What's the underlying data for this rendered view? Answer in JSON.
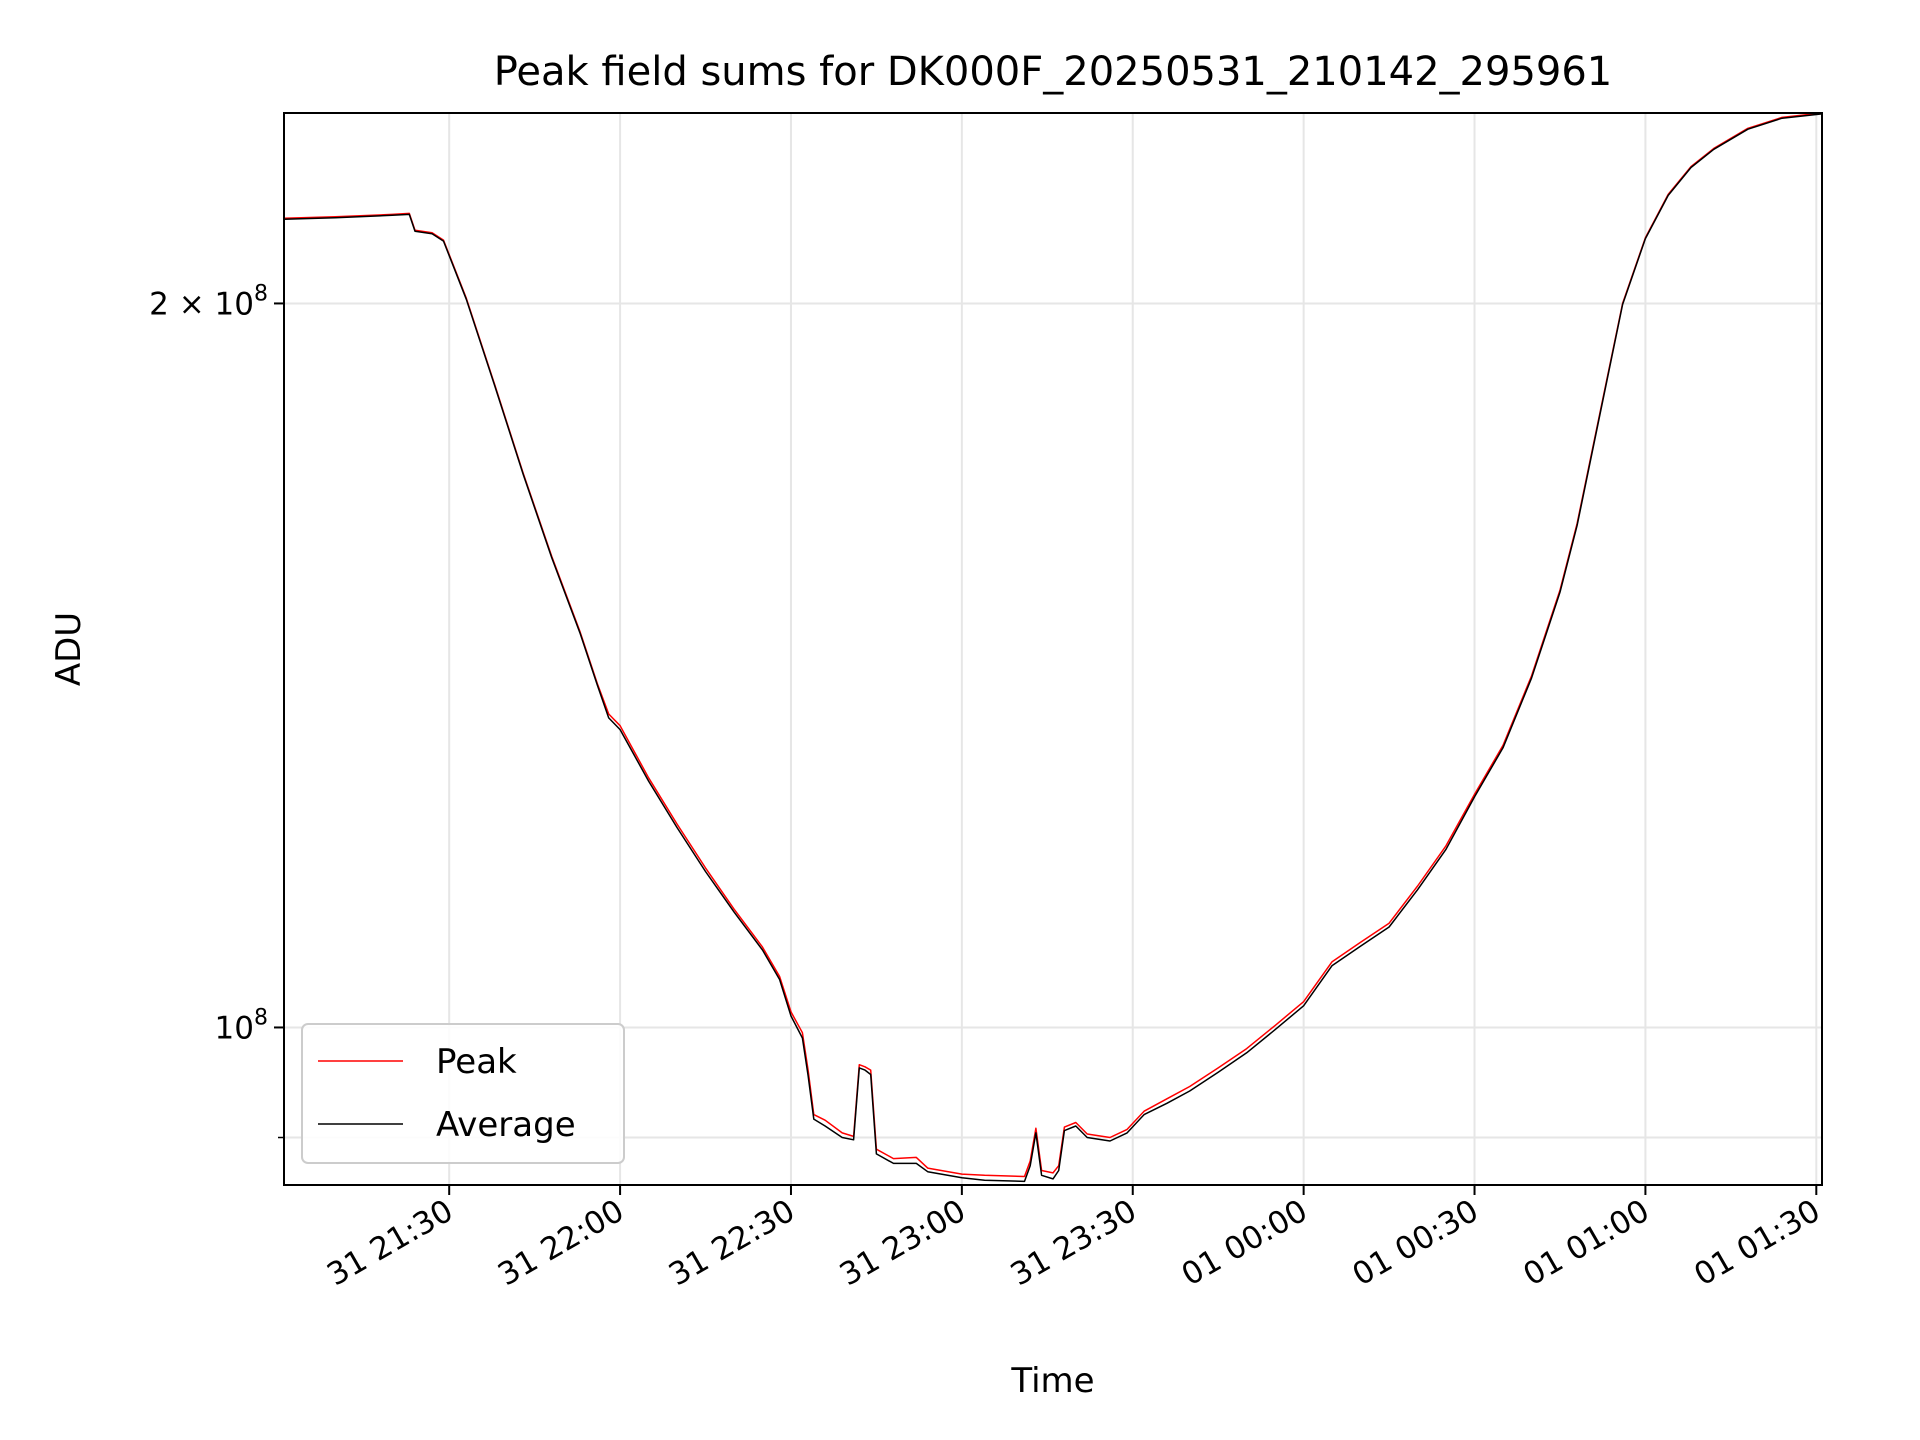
{
  "chart_data": {
    "type": "line",
    "title": "Peak field sums for DK000F_20250531_210142_295961",
    "xlabel": "Time",
    "ylabel": "ADU",
    "yscale": "log",
    "xlim": [
      "2025-05-31 21:01",
      "2025-06-01 01:31"
    ],
    "ylim": [
      86000000,
      240000000
    ],
    "grid": true,
    "legend_position": "lower-left",
    "x_ticks": [
      {
        "t": "2025-05-31 21:30",
        "label": "31 21:30"
      },
      {
        "t": "2025-05-31 22:00",
        "label": "31 22:00"
      },
      {
        "t": "2025-05-31 22:30",
        "label": "31 22:30"
      },
      {
        "t": "2025-05-31 23:00",
        "label": "31 23:00"
      },
      {
        "t": "2025-05-31 23:30",
        "label": "31 23:30"
      },
      {
        "t": "2025-06-01 00:00",
        "label": "01 00:00"
      },
      {
        "t": "2025-06-01 00:30",
        "label": "01 00:30"
      },
      {
        "t": "2025-06-01 01:00",
        "label": "01 01:00"
      },
      {
        "t": "2025-06-01 01:30",
        "label": "01 01:30"
      }
    ],
    "y_ticks": [
      {
        "v": 200000000,
        "base": "2 × 10",
        "exp": "8"
      },
      {
        "v": 100000000,
        "base": "10",
        "exp": "8"
      }
    ],
    "y_minor_ticks": [
      90000000
    ],
    "series": [
      {
        "name": "Peak",
        "color": "#ff0000",
        "points": [
          [
            "2025-05-31 21:01",
            217000000
          ],
          [
            "2025-05-31 21:10",
            217300000
          ],
          [
            "2025-05-31 21:20",
            217800000
          ],
          [
            "2025-05-31 21:23",
            218000000
          ],
          [
            "2025-05-31 21:24",
            214500000
          ],
          [
            "2025-05-31 21:27",
            214000000
          ],
          [
            "2025-05-31 21:29",
            212500000
          ],
          [
            "2025-05-31 21:33",
            201000000
          ],
          [
            "2025-05-31 21:38",
            185000000
          ],
          [
            "2025-05-31 21:43",
            170000000
          ],
          [
            "2025-05-31 21:48",
            157000000
          ],
          [
            "2025-05-31 21:53",
            146000000
          ],
          [
            "2025-05-31 21:56",
            139000000
          ],
          [
            "2025-05-31 21:58",
            135000000
          ],
          [
            "2025-05-31 22:00",
            133500000
          ],
          [
            "2025-05-31 22:05",
            127000000
          ],
          [
            "2025-05-31 22:10",
            121500000
          ],
          [
            "2025-05-31 22:15",
            116500000
          ],
          [
            "2025-05-31 22:20",
            112000000
          ],
          [
            "2025-05-31 22:25",
            108000000
          ],
          [
            "2025-05-31 22:28",
            105000000
          ],
          [
            "2025-05-31 22:30",
            101500000
          ],
          [
            "2025-05-31 22:32",
            99500000
          ],
          [
            "2025-05-31 22:33",
            96000000
          ],
          [
            "2025-05-31 22:34",
            92000000
          ],
          [
            "2025-05-31 22:36",
            91500000
          ],
          [
            "2025-05-31 22:39",
            90400000
          ],
          [
            "2025-05-31 22:41",
            90100000
          ],
          [
            "2025-05-31 22:42",
            96500000
          ],
          [
            "2025-05-31 22:43",
            96300000
          ],
          [
            "2025-05-31 22:44",
            96000000
          ],
          [
            "2025-05-31 22:45",
            89000000
          ],
          [
            "2025-05-31 22:48",
            88200000
          ],
          [
            "2025-05-31 22:52",
            88300000
          ],
          [
            "2025-05-31 22:54",
            87400000
          ],
          [
            "2025-05-31 23:00",
            86900000
          ],
          [
            "2025-05-31 23:04",
            86800000
          ],
          [
            "2025-05-31 23:11",
            86700000
          ],
          [
            "2025-05-31 23:12",
            88000000
          ],
          [
            "2025-05-31 23:13",
            90800000
          ],
          [
            "2025-05-31 23:14",
            87200000
          ],
          [
            "2025-05-31 23:16",
            87000000
          ],
          [
            "2025-05-31 23:17",
            87600000
          ],
          [
            "2025-05-31 23:18",
            90900000
          ],
          [
            "2025-05-31 23:20",
            91300000
          ],
          [
            "2025-05-31 23:22",
            90300000
          ],
          [
            "2025-05-31 23:26",
            90000000
          ],
          [
            "2025-05-31 23:29",
            90700000
          ],
          [
            "2025-05-31 23:32",
            92300000
          ],
          [
            "2025-05-31 23:36",
            93400000
          ],
          [
            "2025-05-31 23:40",
            94500000
          ],
          [
            "2025-05-31 23:45",
            96200000
          ],
          [
            "2025-05-31 23:50",
            98000000
          ],
          [
            "2025-05-31 23:55",
            100200000
          ],
          [
            "2025-06-01 00:00",
            102500000
          ],
          [
            "2025-06-01 00:05",
            106500000
          ],
          [
            "2025-06-01 00:10",
            108500000
          ],
          [
            "2025-06-01 00:15",
            110500000
          ],
          [
            "2025-06-01 00:20",
            114500000
          ],
          [
            "2025-06-01 00:25",
            119000000
          ],
          [
            "2025-06-01 00:30",
            125000000
          ],
          [
            "2025-06-01 00:35",
            131000000
          ],
          [
            "2025-06-01 00:40",
            140000000
          ],
          [
            "2025-06-01 00:45",
            152000000
          ],
          [
            "2025-06-01 00:48",
            162000000
          ],
          [
            "2025-06-01 00:52",
            180000000
          ],
          [
            "2025-06-01 00:56",
            200000000
          ],
          [
            "2025-06-01 01:00",
            213000000
          ],
          [
            "2025-06-01 01:04",
            222000000
          ],
          [
            "2025-06-01 01:08",
            228000000
          ],
          [
            "2025-06-01 01:12",
            232000000
          ],
          [
            "2025-06-01 01:18",
            236500000
          ],
          [
            "2025-06-01 01:24",
            239000000
          ],
          [
            "2025-06-01 01:31",
            240000000
          ]
        ]
      },
      {
        "name": "Average",
        "color": "#000000",
        "points": [
          [
            "2025-05-31 21:01",
            216800000
          ],
          [
            "2025-05-31 21:10",
            217100000
          ],
          [
            "2025-05-31 21:20",
            217600000
          ],
          [
            "2025-05-31 21:23",
            217800000
          ],
          [
            "2025-05-31 21:24",
            214300000
          ],
          [
            "2025-05-31 21:27",
            213800000
          ],
          [
            "2025-05-31 21:29",
            212300000
          ],
          [
            "2025-05-31 21:33",
            200800000
          ],
          [
            "2025-05-31 21:38",
            184800000
          ],
          [
            "2025-05-31 21:43",
            169800000
          ],
          [
            "2025-05-31 21:48",
            156800000
          ],
          [
            "2025-05-31 21:53",
            145800000
          ],
          [
            "2025-05-31 21:56",
            138800000
          ],
          [
            "2025-05-31 21:58",
            134500000
          ],
          [
            "2025-05-31 22:00",
            133000000
          ],
          [
            "2025-05-31 22:05",
            126600000
          ],
          [
            "2025-05-31 22:10",
            121100000
          ],
          [
            "2025-05-31 22:15",
            116100000
          ],
          [
            "2025-05-31 22:20",
            111700000
          ],
          [
            "2025-05-31 22:25",
            107700000
          ],
          [
            "2025-05-31 22:28",
            104700000
          ],
          [
            "2025-05-31 22:30",
            101100000
          ],
          [
            "2025-05-31 22:32",
            99000000
          ],
          [
            "2025-05-31 22:33",
            95500000
          ],
          [
            "2025-05-31 22:34",
            91600000
          ],
          [
            "2025-05-31 22:36",
            91000000
          ],
          [
            "2025-05-31 22:39",
            90000000
          ],
          [
            "2025-05-31 22:41",
            89800000
          ],
          [
            "2025-05-31 22:42",
            96200000
          ],
          [
            "2025-05-31 22:43",
            96000000
          ],
          [
            "2025-05-31 22:44",
            95600000
          ],
          [
            "2025-05-31 22:45",
            88600000
          ],
          [
            "2025-05-31 22:48",
            87800000
          ],
          [
            "2025-05-31 22:52",
            87800000
          ],
          [
            "2025-05-31 22:54",
            87100000
          ],
          [
            "2025-05-31 23:00",
            86600000
          ],
          [
            "2025-05-31 23:04",
            86400000
          ],
          [
            "2025-05-31 23:11",
            86300000
          ],
          [
            "2025-05-31 23:12",
            87600000
          ],
          [
            "2025-05-31 23:13",
            90400000
          ],
          [
            "2025-05-31 23:14",
            86800000
          ],
          [
            "2025-05-31 23:16",
            86500000
          ],
          [
            "2025-05-31 23:17",
            87200000
          ],
          [
            "2025-05-31 23:18",
            90600000
          ],
          [
            "2025-05-31 23:20",
            91000000
          ],
          [
            "2025-05-31 23:22",
            90000000
          ],
          [
            "2025-05-31 23:26",
            89700000
          ],
          [
            "2025-05-31 23:29",
            90400000
          ],
          [
            "2025-05-31 23:32",
            92000000
          ],
          [
            "2025-05-31 23:36",
            93000000
          ],
          [
            "2025-05-31 23:40",
            94100000
          ],
          [
            "2025-05-31 23:45",
            95800000
          ],
          [
            "2025-05-31 23:50",
            97600000
          ],
          [
            "2025-05-31 23:55",
            99800000
          ],
          [
            "2025-06-01 00:00",
            102100000
          ],
          [
            "2025-06-01 00:05",
            106100000
          ],
          [
            "2025-06-01 00:10",
            108100000
          ],
          [
            "2025-06-01 00:15",
            110100000
          ],
          [
            "2025-06-01 00:20",
            114100000
          ],
          [
            "2025-06-01 00:25",
            118600000
          ],
          [
            "2025-06-01 00:30",
            124700000
          ],
          [
            "2025-06-01 00:35",
            130700000
          ],
          [
            "2025-06-01 00:40",
            139700000
          ],
          [
            "2025-06-01 00:45",
            151700000
          ],
          [
            "2025-06-01 00:48",
            161700000
          ],
          [
            "2025-06-01 00:52",
            179700000
          ],
          [
            "2025-06-01 00:56",
            199800000
          ],
          [
            "2025-06-01 01:00",
            212800000
          ],
          [
            "2025-06-01 01:04",
            221800000
          ],
          [
            "2025-06-01 01:08",
            227800000
          ],
          [
            "2025-06-01 01:12",
            231800000
          ],
          [
            "2025-06-01 01:18",
            236300000
          ],
          [
            "2025-06-01 01:24",
            238800000
          ],
          [
            "2025-06-01 01:31",
            239800000
          ]
        ]
      }
    ]
  }
}
